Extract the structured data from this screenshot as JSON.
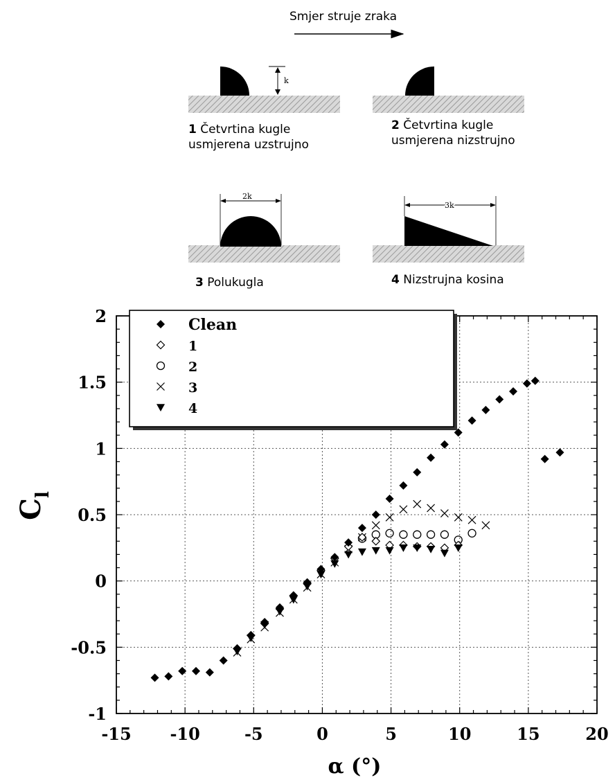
{
  "diagram": {
    "flow_label": "Smjer struje zraka",
    "dim_k": "k",
    "dim_2k": "2k",
    "dim_3k": "3k",
    "captions": [
      {
        "num": "1",
        "line1": "Četvrtina kugle",
        "line2": "usmjerena uzstrujno"
      },
      {
        "num": "2",
        "line1": "Četvrtina kugle",
        "line2": "usmjerena nizstrujno"
      },
      {
        "num": "3",
        "line1": "Polukugla",
        "line2": ""
      },
      {
        "num": "4",
        "line1": "Nizstrujna kosina",
        "line2": ""
      }
    ]
  },
  "chart_data": {
    "type": "scatter",
    "xlabel": "α (°)",
    "ylabel": "C",
    "ylabel_sub": "l",
    "xlim": [
      -15,
      20
    ],
    "ylim": [
      -1,
      2
    ],
    "xticks": [
      -15,
      -10,
      -5,
      0,
      5,
      10,
      15,
      20
    ],
    "yticks": [
      -1,
      -0.5,
      0,
      0.5,
      1,
      1.5,
      2
    ],
    "grid": true,
    "legend_position": "top-left",
    "series": [
      {
        "name": "Clean",
        "marker": "filled-diamond",
        "x": [
          -12.2,
          -11.2,
          -10.2,
          -9.2,
          -8.2,
          -7.2,
          -6.2,
          -5.2,
          -4.2,
          -3.1,
          -2.1,
          -1.1,
          -0.1,
          0.9,
          1.9,
          2.9,
          3.9,
          4.9,
          5.9,
          6.9,
          7.9,
          8.9,
          9.9,
          10.9,
          11.9,
          12.9,
          13.9,
          14.9,
          15.5,
          16.2,
          17.3
        ],
        "y": [
          -0.73,
          -0.72,
          -0.68,
          -0.68,
          -0.69,
          -0.6,
          -0.51,
          -0.41,
          -0.31,
          -0.2,
          -0.11,
          -0.01,
          0.09,
          0.18,
          0.29,
          0.4,
          0.5,
          0.62,
          0.72,
          0.82,
          0.93,
          1.03,
          1.12,
          1.21,
          1.29,
          1.37,
          1.43,
          1.49,
          1.51,
          0.92,
          0.97
        ]
      },
      {
        "name": "1",
        "marker": "open-diamond",
        "x": [
          -6.2,
          -5.2,
          -4.2,
          -3.1,
          -2.1,
          -1.1,
          -0.1,
          0.9,
          1.9,
          2.9,
          3.9,
          4.9,
          5.9,
          6.9,
          7.9,
          8.9,
          9.9
        ],
        "y": [
          -0.51,
          -0.41,
          -0.32,
          -0.21,
          -0.11,
          -0.02,
          0.08,
          0.17,
          0.26,
          0.33,
          0.3,
          0.27,
          0.27,
          0.26,
          0.26,
          0.25,
          0.27
        ]
      },
      {
        "name": "2",
        "marker": "open-circle",
        "x": [
          2.9,
          3.9,
          4.9,
          5.9,
          6.9,
          7.9,
          8.9,
          9.9,
          10.9
        ],
        "y": [
          0.32,
          0.35,
          0.36,
          0.35,
          0.35,
          0.35,
          0.35,
          0.31,
          0.36
        ]
      },
      {
        "name": "3",
        "marker": "cross",
        "x": [
          -6.2,
          -5.2,
          -4.2,
          -3.1,
          -2.1,
          -1.1,
          -0.1,
          0.9,
          1.9,
          2.9,
          3.9,
          4.9,
          5.9,
          6.9,
          7.9,
          8.9,
          9.9,
          10.9,
          11.9
        ],
        "y": [
          -0.54,
          -0.44,
          -0.35,
          -0.24,
          -0.14,
          -0.05,
          0.05,
          0.14,
          0.24,
          0.33,
          0.42,
          0.48,
          0.54,
          0.58,
          0.55,
          0.51,
          0.48,
          0.46,
          0.42
        ]
      },
      {
        "name": "4",
        "marker": "filled-triangle-down",
        "x": [
          -6.2,
          -5.2,
          -4.2,
          -3.1,
          -2.1,
          -1.1,
          -0.1,
          0.9,
          1.9,
          2.9,
          3.9,
          4.9,
          5.9,
          6.9,
          7.9,
          8.9,
          9.9
        ],
        "y": [
          -0.53,
          -0.43,
          -0.33,
          -0.23,
          -0.14,
          -0.04,
          0.05,
          0.13,
          0.2,
          0.22,
          0.23,
          0.23,
          0.25,
          0.25,
          0.24,
          0.21,
          0.25
        ]
      }
    ]
  }
}
